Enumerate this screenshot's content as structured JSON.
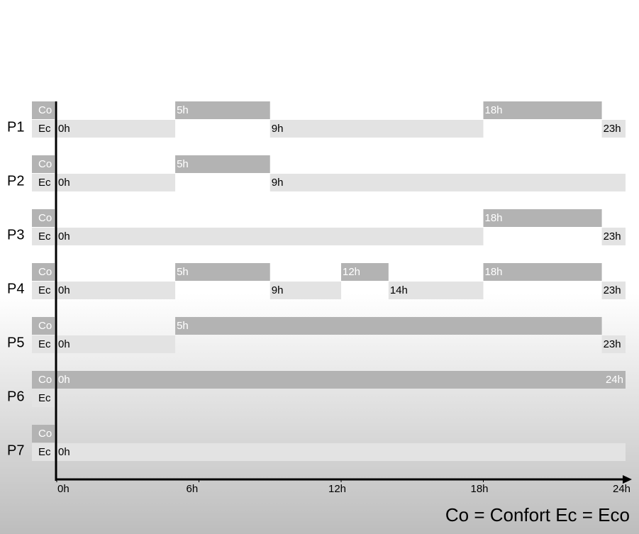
{
  "chart_data": {
    "type": "gantt",
    "modes": [
      "Co",
      "Ec"
    ],
    "co_color": "#b3b3b3",
    "ec_color": "#e3e3e3",
    "xlim": [
      0,
      24
    ],
    "xticks": [
      {
        "value": 0,
        "label": "0h"
      },
      {
        "value": 6,
        "label": "6h"
      },
      {
        "value": 12,
        "label": "12h"
      },
      {
        "value": 18,
        "label": "18h"
      },
      {
        "value": 24,
        "label": "24h"
      }
    ],
    "rows": [
      {
        "name": "P1",
        "co": [
          {
            "start": {
              "value": 5,
              "label": "5h"
            },
            "end": 9
          },
          {
            "start": {
              "value": 18,
              "label": "18h"
            },
            "end": 23
          }
        ],
        "ec": [
          {
            "start": {
              "value": 0,
              "label": "0h"
            },
            "end": 5
          },
          {
            "start": {
              "value": 9,
              "label": "9h"
            },
            "end": 18
          },
          {
            "start": {
              "value": 23,
              "label": "23h"
            },
            "end": 24
          }
        ]
      },
      {
        "name": "P2",
        "co": [
          {
            "start": {
              "value": 5,
              "label": "5h"
            },
            "end": 9
          }
        ],
        "ec": [
          {
            "start": {
              "value": 0,
              "label": "0h"
            },
            "end": 5
          },
          {
            "start": {
              "value": 9,
              "label": "9h"
            },
            "end": 24
          }
        ]
      },
      {
        "name": "P3",
        "co": [
          {
            "start": {
              "value": 18,
              "label": "18h"
            },
            "end": 23
          }
        ],
        "ec": [
          {
            "start": {
              "value": 0,
              "label": "0h"
            },
            "end": 18
          },
          {
            "start": {
              "value": 23,
              "label": "23h"
            },
            "end": 24
          }
        ]
      },
      {
        "name": "P4",
        "co": [
          {
            "start": {
              "value": 5,
              "label": "5h"
            },
            "end": 9
          },
          {
            "start": {
              "value": 12,
              "label": "12h"
            },
            "end": 14
          },
          {
            "start": {
              "value": 18,
              "label": "18h"
            },
            "end": 23
          }
        ],
        "ec": [
          {
            "start": {
              "value": 0,
              "label": "0h"
            },
            "end": 5
          },
          {
            "start": {
              "value": 9,
              "label": "9h"
            },
            "end": 12
          },
          {
            "start": {
              "value": 14,
              "label": "14h"
            },
            "end": 18
          },
          {
            "start": {
              "value": 23,
              "label": "23h"
            },
            "end": 24
          }
        ]
      },
      {
        "name": "P5",
        "co": [
          {
            "start": {
              "value": 5,
              "label": "5h"
            },
            "end": 23
          }
        ],
        "ec": [
          {
            "start": {
              "value": 0,
              "label": "0h"
            },
            "end": 5
          },
          {
            "start": {
              "value": 23,
              "label": "23h"
            },
            "end": 24
          }
        ]
      },
      {
        "name": "P6",
        "co": [
          {
            "start": {
              "value": 0,
              "label": "0h"
            },
            "end": {
              "value": 24,
              "label": "24h"
            }
          }
        ],
        "ec": []
      },
      {
        "name": "P7",
        "co": [],
        "ec": [
          {
            "start": {
              "value": 0,
              "label": "0h"
            },
            "end": 24
          }
        ]
      }
    ],
    "legend": "Co = Confort  Ec = Eco"
  }
}
